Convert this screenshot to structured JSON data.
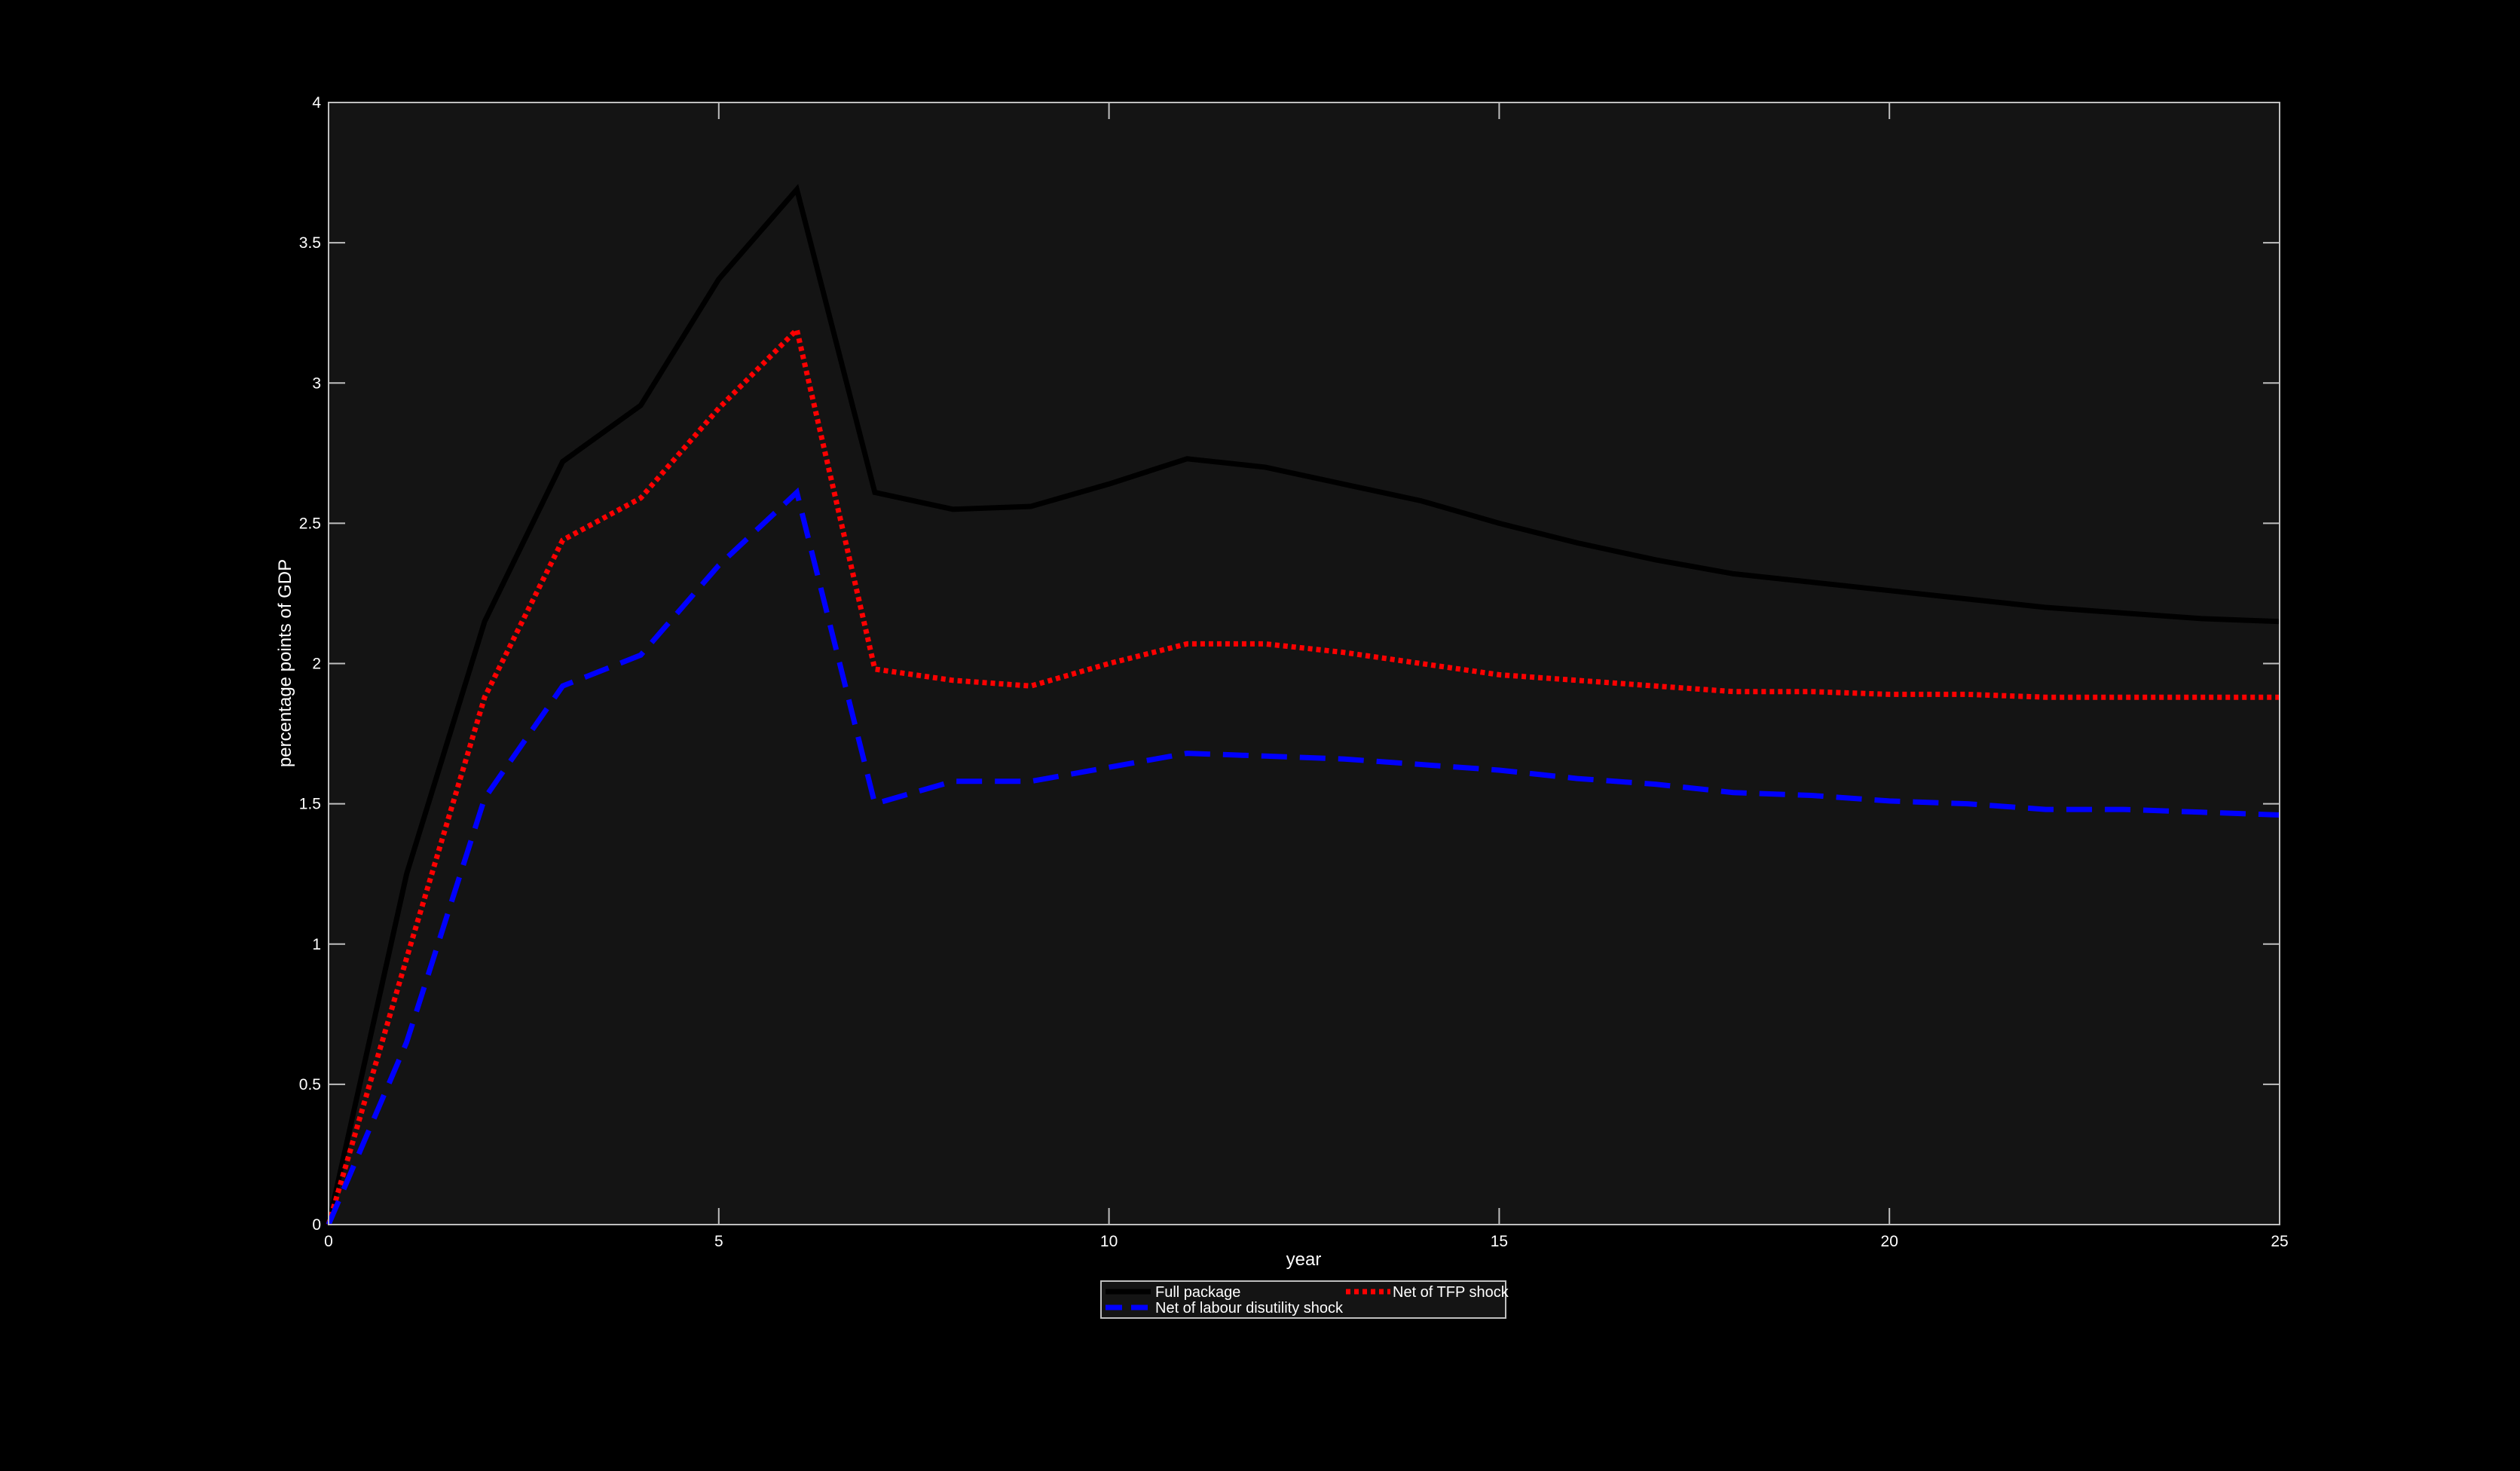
{
  "chart_data": {
    "type": "line",
    "title": "",
    "xlabel": "year",
    "ylabel": "percentage points of GDP",
    "xlim": [
      0,
      25
    ],
    "ylim": [
      0,
      4
    ],
    "xticks": [
      0,
      5,
      10,
      15,
      20,
      25
    ],
    "yticks": [
      0,
      0.5,
      1,
      1.5,
      2,
      2.5,
      3,
      3.5,
      4
    ],
    "grid": false,
    "legend_position": "bottom-center",
    "background_color": "#000000",
    "plot_background_color": "#141414",
    "axis_color": "#bfbfbf",
    "x": [
      0,
      1,
      2,
      3,
      4,
      5,
      6,
      7,
      8,
      9,
      10,
      11,
      12,
      13,
      14,
      15,
      16,
      17,
      18,
      19,
      20,
      21,
      22,
      23,
      24,
      25
    ],
    "series": [
      {
        "name": "Full package",
        "color": "#000000",
        "style": "solid",
        "values": [
          0,
          1.25,
          2.15,
          2.72,
          2.92,
          3.37,
          3.69,
          2.61,
          2.55,
          2.56,
          2.64,
          2.73,
          2.7,
          2.64,
          2.58,
          2.5,
          2.43,
          2.37,
          2.32,
          2.29,
          2.26,
          2.23,
          2.2,
          2.18,
          2.16,
          2.15
        ]
      },
      {
        "name": "Net of TFP shock",
        "color": "#ff0000",
        "style": "dotted",
        "values": [
          0,
          0.95,
          1.88,
          2.44,
          2.59,
          2.91,
          3.19,
          1.98,
          1.94,
          1.92,
          2.0,
          2.07,
          2.07,
          2.04,
          2.0,
          1.96,
          1.94,
          1.92,
          1.9,
          1.9,
          1.89,
          1.89,
          1.88,
          1.88,
          1.88,
          1.88
        ]
      },
      {
        "name": "Net of labour disutility shock",
        "color": "#0000ff",
        "style": "dashed",
        "values": [
          0,
          0.65,
          1.52,
          1.92,
          2.03,
          2.35,
          2.61,
          1.5,
          1.58,
          1.58,
          1.63,
          1.68,
          1.67,
          1.66,
          1.64,
          1.62,
          1.59,
          1.57,
          1.54,
          1.53,
          1.51,
          1.5,
          1.48,
          1.48,
          1.47,
          1.46
        ]
      }
    ]
  }
}
